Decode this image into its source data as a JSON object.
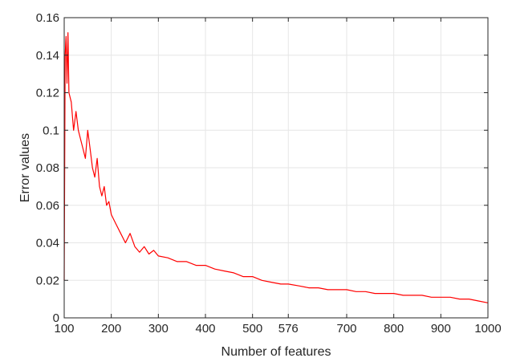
{
  "chart_data": {
    "type": "line",
    "title": "",
    "xlabel": "Number of features",
    "ylabel": "Error values",
    "xlim": [
      100,
      1000
    ],
    "ylim": [
      0,
      0.16
    ],
    "xticks": [
      100,
      200,
      300,
      400,
      500,
      576,
      700,
      800,
      900,
      1000
    ],
    "xtick_labels": [
      "100",
      "200",
      "300",
      "400",
      "500",
      "576",
      "700",
      "800",
      "900",
      "1000"
    ],
    "yticks": [
      0,
      0.02,
      0.04,
      0.06,
      0.08,
      0.1,
      0.12,
      0.14,
      0.16
    ],
    "ytick_labels": [
      "0",
      "0.02",
      "0.04",
      "0.06",
      "0.08",
      "0.1",
      "0.12",
      "0.14",
      "0.16"
    ],
    "grid": true,
    "series": [
      {
        "color": "#ff0000",
        "x": [
          100,
          102,
          104,
          106,
          108,
          110,
          115,
          120,
          125,
          130,
          135,
          140,
          145,
          150,
          155,
          160,
          165,
          170,
          175,
          180,
          185,
          190,
          195,
          200,
          210,
          220,
          230,
          240,
          250,
          260,
          270,
          280,
          290,
          300,
          320,
          340,
          360,
          380,
          400,
          420,
          440,
          460,
          480,
          500,
          520,
          540,
          560,
          576,
          600,
          620,
          640,
          660,
          680,
          700,
          720,
          740,
          760,
          780,
          800,
          820,
          840,
          860,
          880,
          900,
          920,
          940,
          960,
          980,
          1000
        ],
        "y": [
          0.02,
          0.14,
          0.15,
          0.125,
          0.152,
          0.12,
          0.115,
          0.1,
          0.11,
          0.1,
          0.095,
          0.09,
          0.085,
          0.1,
          0.09,
          0.08,
          0.075,
          0.085,
          0.07,
          0.065,
          0.07,
          0.06,
          0.062,
          0.055,
          0.05,
          0.045,
          0.04,
          0.045,
          0.038,
          0.035,
          0.038,
          0.034,
          0.036,
          0.033,
          0.032,
          0.03,
          0.03,
          0.028,
          0.028,
          0.026,
          0.025,
          0.024,
          0.022,
          0.022,
          0.02,
          0.019,
          0.018,
          0.018,
          0.017,
          0.016,
          0.016,
          0.015,
          0.015,
          0.015,
          0.014,
          0.014,
          0.013,
          0.013,
          0.013,
          0.012,
          0.012,
          0.012,
          0.011,
          0.011,
          0.011,
          0.01,
          0.01,
          0.009,
          0.008
        ]
      }
    ]
  }
}
